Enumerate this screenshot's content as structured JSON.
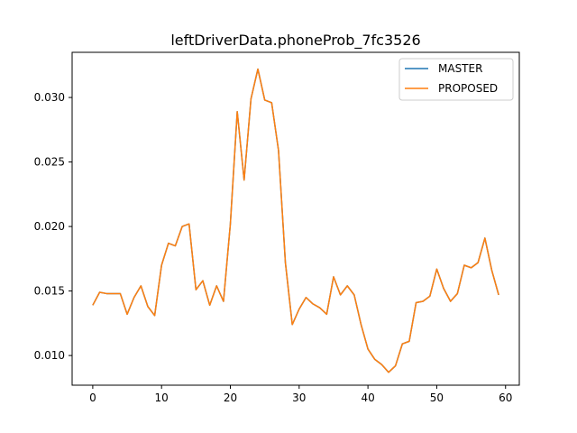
{
  "chart_data": {
    "type": "line",
    "title": "leftDriverData.phoneProb_7fc3526",
    "xlabel": "",
    "ylabel": "",
    "xlim": [
      -3,
      62
    ],
    "ylim": [
      0.0077,
      0.0335
    ],
    "xticks": [
      0,
      10,
      20,
      30,
      40,
      50,
      60
    ],
    "xtick_labels": [
      "0",
      "10",
      "20",
      "30",
      "40",
      "50",
      "60"
    ],
    "yticks": [
      0.01,
      0.015,
      0.02,
      0.025,
      0.03
    ],
    "ytick_labels": [
      "0.010",
      "0.015",
      "0.020",
      "0.025",
      "0.030"
    ],
    "grid": false,
    "legend_position": "top-right",
    "x": [
      0,
      1,
      2,
      3,
      4,
      5,
      6,
      7,
      8,
      9,
      10,
      11,
      12,
      13,
      14,
      15,
      16,
      17,
      18,
      19,
      20,
      21,
      22,
      23,
      24,
      25,
      26,
      27,
      28,
      29,
      30,
      31,
      32,
      33,
      34,
      35,
      36,
      37,
      38,
      39,
      40,
      41,
      42,
      43,
      44,
      45,
      46,
      47,
      48,
      49,
      50,
      51,
      52,
      53,
      54,
      55,
      56,
      57,
      58,
      59
    ],
    "series": [
      {
        "name": "MASTER",
        "color": "#1f77b4",
        "values": [
          0.0139,
          0.0149,
          0.0148,
          0.0148,
          0.0148,
          0.0132,
          0.0145,
          0.0154,
          0.0138,
          0.0131,
          0.017,
          0.0187,
          0.0185,
          0.02,
          0.0202,
          0.0151,
          0.0158,
          0.0139,
          0.0154,
          0.0142,
          0.0202,
          0.0289,
          0.0236,
          0.0299,
          0.0322,
          0.0298,
          0.0296,
          0.0259,
          0.0172,
          0.0124,
          0.0136,
          0.0145,
          0.014,
          0.0137,
          0.0132,
          0.0161,
          0.0147,
          0.0154,
          0.0147,
          0.0124,
          0.0105,
          0.0097,
          0.0093,
          0.0087,
          0.0092,
          0.0109,
          0.0111,
          0.0141,
          0.0142,
          0.0146,
          0.0167,
          0.0152,
          0.0142,
          0.0148,
          0.017,
          0.0168,
          0.0172,
          0.0191,
          0.0166,
          0.0147
        ]
      },
      {
        "name": "PROPOSED",
        "color": "#ff7f0e",
        "values": [
          0.0139,
          0.0149,
          0.0148,
          0.0148,
          0.0148,
          0.0132,
          0.0145,
          0.0154,
          0.0138,
          0.0131,
          0.017,
          0.0187,
          0.0185,
          0.02,
          0.0202,
          0.0151,
          0.0158,
          0.0139,
          0.0154,
          0.0142,
          0.0202,
          0.0289,
          0.0236,
          0.0299,
          0.0322,
          0.0298,
          0.0296,
          0.0259,
          0.0172,
          0.0124,
          0.0136,
          0.0145,
          0.014,
          0.0137,
          0.0132,
          0.0161,
          0.0147,
          0.0154,
          0.0147,
          0.0124,
          0.0105,
          0.0097,
          0.0093,
          0.0087,
          0.0092,
          0.0109,
          0.0111,
          0.0141,
          0.0142,
          0.0146,
          0.0167,
          0.0152,
          0.0142,
          0.0148,
          0.017,
          0.0168,
          0.0172,
          0.0191,
          0.0166,
          0.0147
        ]
      }
    ]
  }
}
